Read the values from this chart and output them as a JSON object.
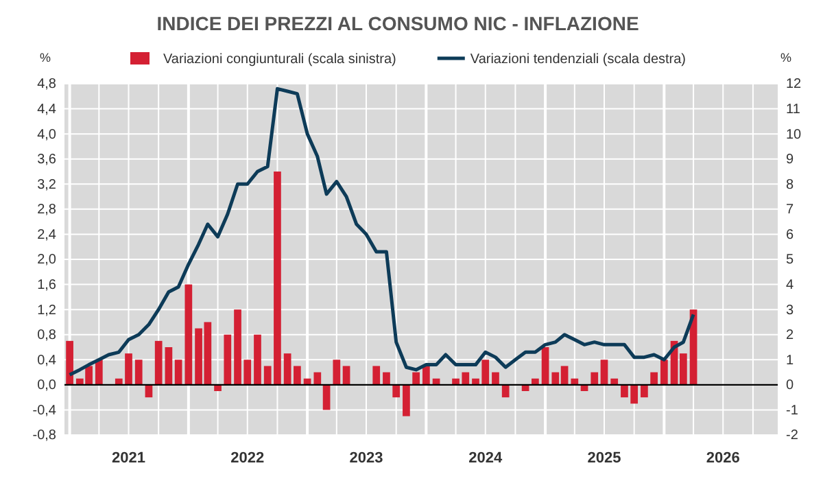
{
  "chart_data": {
    "type": "bar",
    "title": "INDICE DEI PREZZI AL CONSUMO NIC - INFLAZIONE",
    "x": [
      "2021-01",
      "2021-02",
      "2021-03",
      "2021-04",
      "2021-05",
      "2021-06",
      "2021-07",
      "2021-08",
      "2021-09",
      "2021-10",
      "2021-11",
      "2021-12",
      "2022-01",
      "2022-02",
      "2022-03",
      "2022-04",
      "2022-05",
      "2022-06",
      "2022-07",
      "2022-08",
      "2022-09",
      "2022-10",
      "2022-11",
      "2022-12",
      "2023-01",
      "2023-02",
      "2023-03",
      "2023-04",
      "2023-05",
      "2023-06",
      "2023-07",
      "2023-08",
      "2023-09",
      "2023-10",
      "2023-11",
      "2023-12",
      "2024-01",
      "2024-02",
      "2024-03",
      "2024-04",
      "2024-05",
      "2024-06",
      "2024-07",
      "2024-08",
      "2024-09",
      "2024-10",
      "2024-11",
      "2024-12",
      "2025-01",
      "2025-02",
      "2025-03",
      "2025-04",
      "2025-05",
      "2025-06",
      "2025-07",
      "2025-08",
      "2025-09",
      "2025-10",
      "2025-11",
      "2025-12",
      "2026-01",
      "2026-02",
      "2026-03",
      "2026-04"
    ],
    "series": [
      {
        "name": "Variazioni congiunturali (scala sinistra)",
        "type": "bar",
        "color": "#d42033",
        "values": [
          0.7,
          0.1,
          0.3,
          0.4,
          0.0,
          0.1,
          0.5,
          0.4,
          -0.2,
          0.7,
          0.6,
          0.4,
          1.6,
          0.9,
          1.0,
          -0.1,
          0.8,
          1.2,
          0.4,
          0.8,
          0.3,
          3.4,
          0.5,
          0.3,
          0.1,
          0.2,
          -0.4,
          0.4,
          0.3,
          0.0,
          0.0,
          0.3,
          0.2,
          -0.2,
          -0.5,
          0.2,
          0.3,
          0.1,
          0.0,
          0.1,
          0.2,
          0.1,
          0.4,
          0.2,
          -0.2,
          0.0,
          -0.1,
          0.1,
          0.6,
          0.2,
          0.3,
          0.1,
          -0.1,
          0.2,
          0.4,
          0.1,
          -0.2,
          -0.3,
          -0.2,
          0.2,
          0.4,
          0.7,
          0.5,
          1.2
        ]
      },
      {
        "name": "Variazioni tendenziali (scala destra)",
        "type": "line",
        "axis": "y2",
        "color": "#0d3b58",
        "values": [
          0.4,
          0.6,
          0.8,
          1.0,
          1.2,
          1.3,
          1.8,
          2.0,
          2.4,
          3.0,
          3.7,
          3.9,
          4.8,
          5.6,
          6.4,
          5.9,
          6.8,
          8.0,
          8.0,
          8.5,
          8.7,
          11.8,
          11.7,
          11.6,
          10.0,
          9.1,
          7.6,
          8.1,
          7.5,
          6.4,
          6.0,
          5.3,
          5.3,
          1.7,
          0.7,
          0.6,
          0.8,
          0.8,
          1.2,
          0.8,
          0.8,
          0.8,
          1.3,
          1.1,
          0.7,
          1.0,
          1.3,
          1.3,
          1.6,
          1.7,
          2.0,
          1.8,
          1.6,
          1.7,
          1.6,
          1.6,
          1.6,
          1.1,
          1.1,
          1.2,
          1.0,
          1.5,
          1.7,
          2.8
        ]
      }
    ],
    "xlim": [
      "2020-12-16",
      "2026-12-16"
    ],
    "xticks": [
      {
        "value": "2021-07",
        "label": "2021"
      },
      {
        "value": "2022-07",
        "label": "2022"
      },
      {
        "value": "2023-07",
        "label": "2023"
      },
      {
        "value": "2024-07",
        "label": "2024"
      },
      {
        "value": "2025-07",
        "label": "2025"
      },
      {
        "value": "2026-07",
        "label": "2026"
      }
    ],
    "ylabel": "%",
    "y2label": "%",
    "ylim": [
      -0.8,
      4.8
    ],
    "yticks": [
      {
        "value": -0.8,
        "label": "-0,8"
      },
      {
        "value": -0.4,
        "label": "-0,4"
      },
      {
        "value": 0,
        "label": "0,0"
      },
      {
        "value": 0.4,
        "label": "0,4"
      },
      {
        "value": 0.8,
        "label": "0,8"
      },
      {
        "value": 1.2,
        "label": "1,2"
      },
      {
        "value": 1.6,
        "label": "1,6"
      },
      {
        "value": 2.0,
        "label": "2,0"
      },
      {
        "value": 2.4,
        "label": "2,4"
      },
      {
        "value": 2.8,
        "label": "2,8"
      },
      {
        "value": 3.2,
        "label": "3,2"
      },
      {
        "value": 3.6,
        "label": "3,6"
      },
      {
        "value": 4.0,
        "label": "4,0"
      },
      {
        "value": 4.4,
        "label": "4,4"
      },
      {
        "value": 4.8,
        "label": "4,8"
      }
    ],
    "y2lim": [
      -2,
      12
    ],
    "y2ticks": [
      -2,
      -1,
      0,
      1,
      2,
      3,
      4,
      5,
      6,
      7,
      8,
      9,
      10,
      11,
      12
    ],
    "grid": true,
    "legend": "top"
  }
}
